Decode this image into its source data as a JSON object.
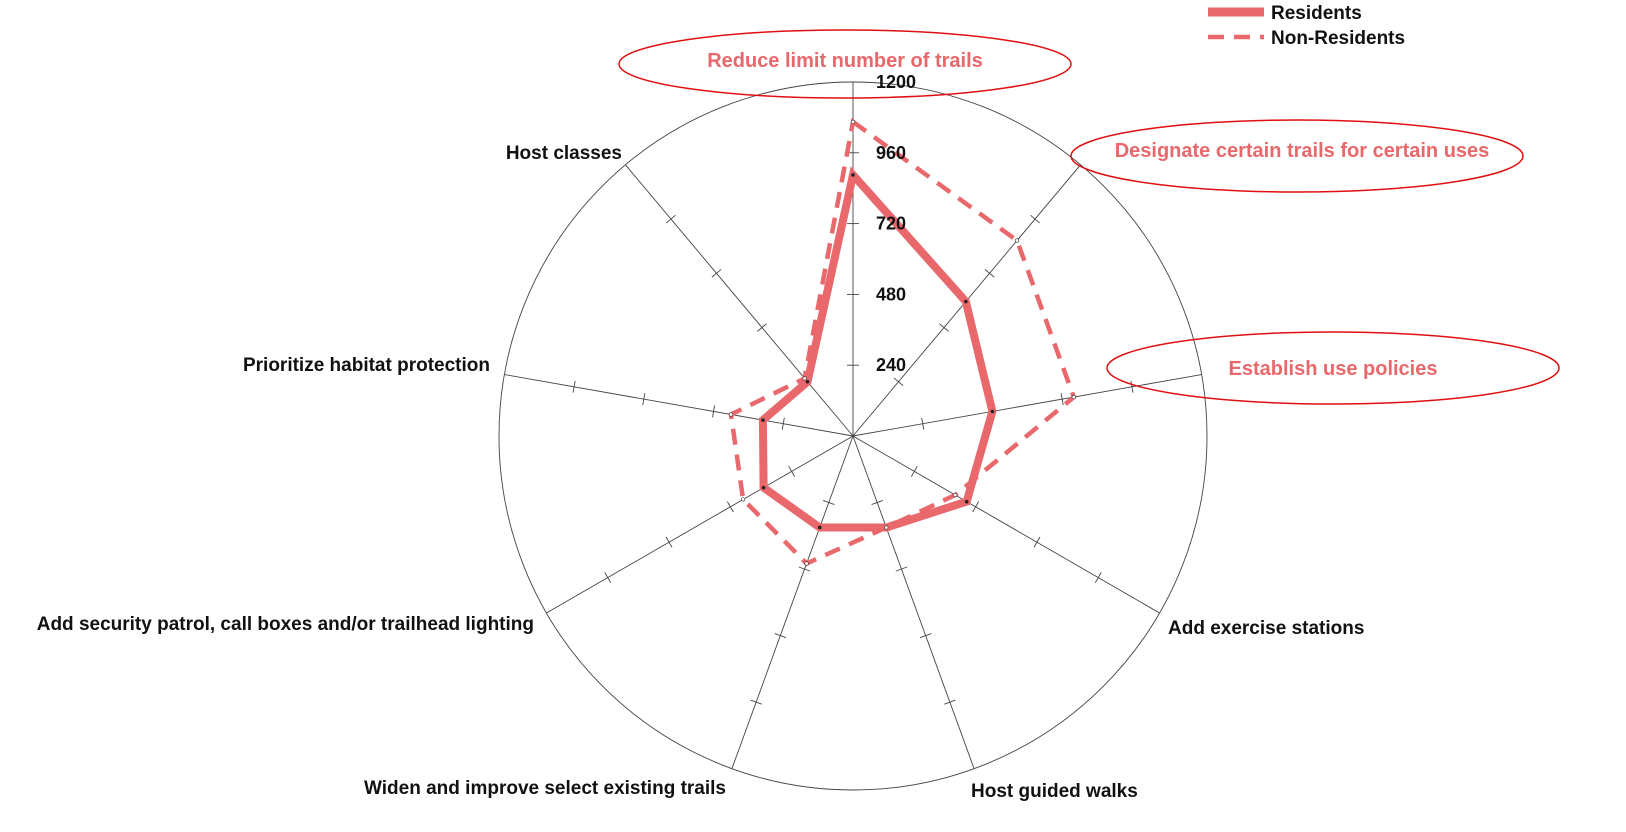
{
  "colors": {
    "series": "#E8686C",
    "highlight_ellipse": "#E01010",
    "highlight_text": "#E8686C",
    "axis": "#444444"
  },
  "legend": {
    "placement": "top-right",
    "items": [
      {
        "label": "Residents",
        "style": "solid"
      },
      {
        "label": "Non-Residents",
        "style": "dashed"
      }
    ]
  },
  "highlights": [
    {
      "label": "Reduce limit number of trails"
    },
    {
      "label": "Designate certain trails for certain uses"
    },
    {
      "label": "Establish use policies"
    }
  ],
  "chart_data": {
    "type": "radar",
    "rmax": 1200,
    "ticks": [
      240,
      480,
      720,
      960,
      1200
    ],
    "ticks_display": [
      "240",
      "480",
      "720",
      "960",
      "1200"
    ],
    "categories": [
      "Reduce limit number of trails",
      "Designate certain trails for certain uses",
      "Establish use policies",
      "Add exercise stations",
      "Host guided walks",
      "Widen and improve select existing trails",
      "Add security patrol, call boxes and/or trailhead lighting",
      "Prioritize habitat protection",
      "Host classes"
    ],
    "series": [
      {
        "name": "Residents",
        "values": [
          885,
          595,
          480,
          445,
          330,
          330,
          350,
          310,
          240
        ]
      },
      {
        "name": "Non-Residents",
        "values": [
          1065,
          865,
          760,
          400,
          330,
          460,
          430,
          420,
          255
        ]
      }
    ]
  }
}
